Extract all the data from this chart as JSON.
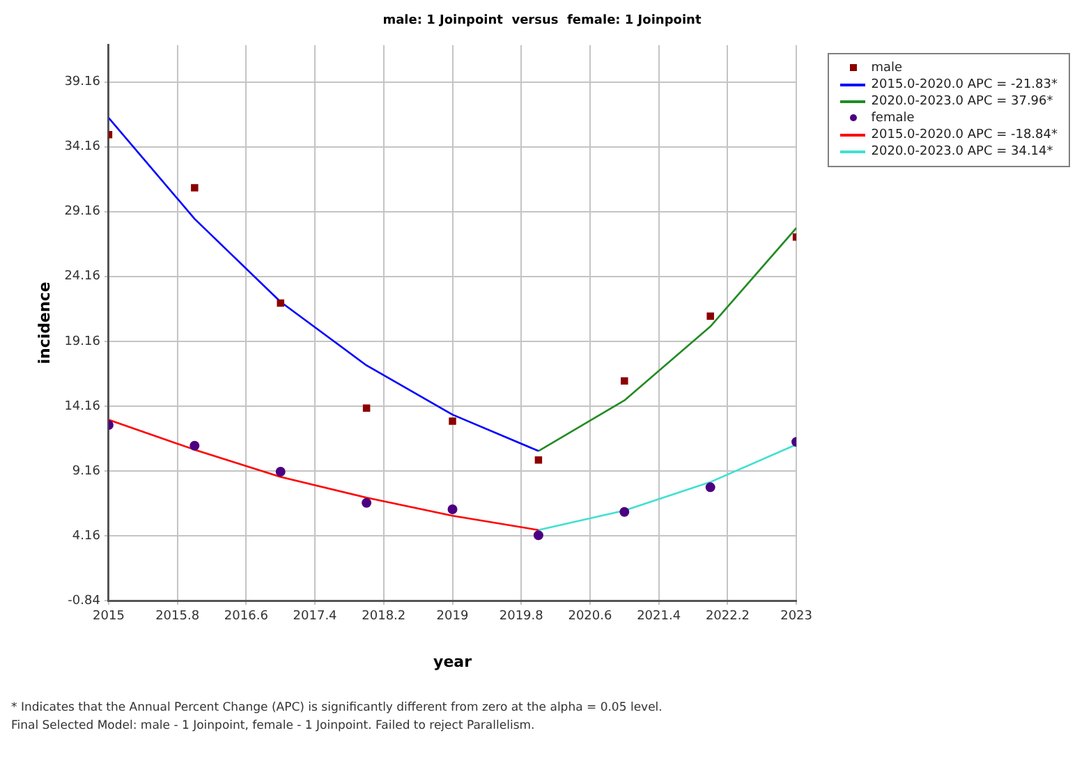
{
  "chart_data": {
    "type": "scatter",
    "title": "male: 1 Joinpoint  versus  female: 1 Joinpoint",
    "xlabel": "year",
    "ylabel": "incidence",
    "xlim": [
      2015,
      2023
    ],
    "xticks": [
      2015,
      2015.8,
      2016.6,
      2017.4,
      2018.2,
      2019,
      2019.8,
      2020.6,
      2021.4,
      2022.2,
      2023
    ],
    "ylim": [
      -0.84,
      42
    ],
    "yticks": [
      -0.84,
      4.16,
      9.16,
      14.16,
      19.16,
      24.16,
      29.16,
      34.16,
      39.16
    ],
    "grid": true,
    "legend": "top right",
    "annotations": [
      "* Indicates that the Annual Percent Change (APC) is significantly different from zero at the alpha = 0.05 level.",
      "Final Selected Model: male - 1 Joinpoint, female - 1 Joinpoint. Failed to reject Parallelism."
    ],
    "series": [
      {
        "name": "male",
        "type": "scatter",
        "marker": "square",
        "color": "#8b0000",
        "x": [
          2015,
          2016,
          2017,
          2018,
          2019,
          2020,
          2021,
          2022,
          2023
        ],
        "values": [
          35.1,
          31.0,
          22.1,
          14.0,
          13.0,
          10.0,
          16.1,
          21.1,
          27.2
        ]
      },
      {
        "name": "2015.0-2020.0 APC = -21.83*",
        "type": "line",
        "marker": "none",
        "color": "#0000ff",
        "x": [
          2015,
          2016,
          2017,
          2018,
          2019,
          2020
        ],
        "values": [
          36.4,
          28.6,
          22.2,
          17.3,
          13.5,
          10.7
        ]
      },
      {
        "name": "2020.0-2023.0 APC = 37.96*",
        "type": "line",
        "marker": "none",
        "color": "#228b22",
        "x": [
          2020,
          2021,
          2022,
          2023
        ],
        "values": [
          10.7,
          14.6,
          20.3,
          27.9
        ]
      },
      {
        "name": "female",
        "type": "scatter",
        "marker": "circle",
        "color": "#4b0082",
        "x": [
          2015,
          2016,
          2017,
          2018,
          2019,
          2020,
          2021,
          2022,
          2023
        ],
        "values": [
          12.7,
          11.1,
          9.1,
          6.7,
          6.2,
          4.2,
          6.0,
          7.9,
          11.4
        ]
      },
      {
        "name": "2015.0-2020.0 APC = -18.84*",
        "type": "line",
        "marker": "none",
        "color": "#ff0000",
        "x": [
          2015,
          2016,
          2017,
          2018,
          2019,
          2020
        ],
        "values": [
          13.1,
          10.8,
          8.7,
          7.1,
          5.7,
          4.6
        ]
      },
      {
        "name": "2020.0-2023.0 APC = 34.14*",
        "type": "line",
        "marker": "none",
        "color": "#40e0d0",
        "x": [
          2020,
          2021,
          2022,
          2023
        ],
        "values": [
          4.6,
          6.1,
          8.3,
          11.2
        ]
      }
    ]
  }
}
